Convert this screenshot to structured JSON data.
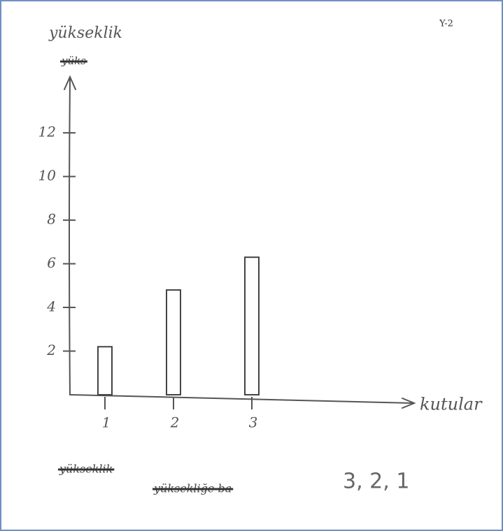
{
  "chart_data": {
    "type": "bar",
    "corner_label": "Y-2",
    "y_label": "yükseklik",
    "x_label": "kutular",
    "crossed_out": [
      "yüks",
      "yükseklik",
      "yüksekliğe ba"
    ],
    "answer": "3, 2, 1",
    "categories": [
      "1",
      "2",
      "3"
    ],
    "values": [
      2.2,
      4.8,
      6.3
    ],
    "color": "#444444",
    "ylim": [
      0,
      14.5
    ],
    "yticks": [
      2,
      4,
      6,
      8,
      10,
      12
    ],
    "grid": false
  }
}
